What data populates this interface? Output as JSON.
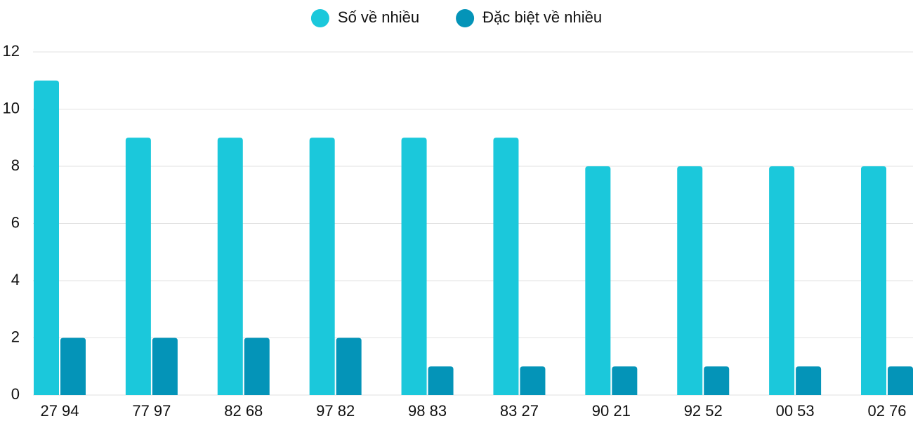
{
  "chart_data": {
    "type": "bar",
    "categories": [
      "27 94",
      "77 97",
      "82 68",
      "97 82",
      "98 83",
      "83 27",
      "90 21",
      "92 52",
      "00 53",
      "02 76"
    ],
    "series": [
      {
        "name": "Số về nhiều",
        "color": "#1bc8db",
        "values": [
          11,
          9,
          9,
          9,
          9,
          9,
          8,
          8,
          8,
          8
        ]
      },
      {
        "name": "Đặc biệt về nhiều",
        "color": "#0494b8",
        "values": [
          2,
          2,
          2,
          2,
          1,
          1,
          1,
          1,
          1,
          1
        ]
      }
    ],
    "ylim": [
      0,
      12
    ],
    "yticks": [
      0,
      2,
      4,
      6,
      8,
      10,
      12
    ],
    "grid": true,
    "legend": "top"
  }
}
